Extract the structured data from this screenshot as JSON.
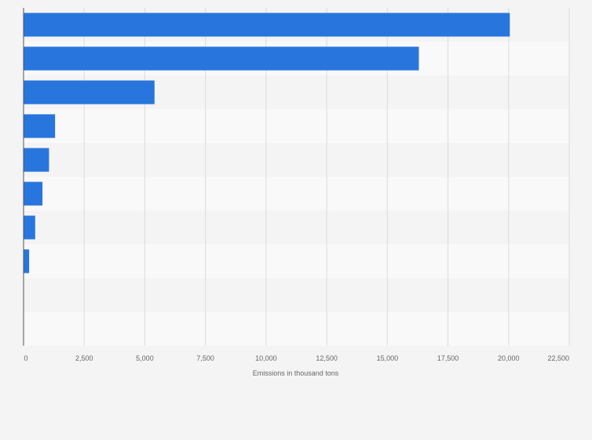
{
  "chart_data": {
    "type": "bar",
    "orientation": "horizontal",
    "title": "",
    "xlabel": "Emissions in thousand tons",
    "ylabel": "",
    "categories": [
      "",
      "",
      "",
      "",
      "",
      "",
      "",
      "",
      "",
      ""
    ],
    "values": [
      20050,
      16300,
      5400,
      1300,
      1050,
      780,
      480,
      230,
      0,
      0
    ],
    "xlim": [
      0,
      22500
    ],
    "xticks": [
      0,
      2500,
      5000,
      7500,
      10000,
      12500,
      15000,
      17500,
      20000,
      22500
    ],
    "xtick_labels": [
      "0",
      "2,500",
      "5,000",
      "7,500",
      "10,000",
      "12,500",
      "15,000",
      "17,500",
      "20,000",
      "22,500"
    ],
    "bar_color": "#2876dd",
    "band_color_a": "#f4f4f4",
    "band_color_b": "#f9f9f9",
    "grid": true
  }
}
